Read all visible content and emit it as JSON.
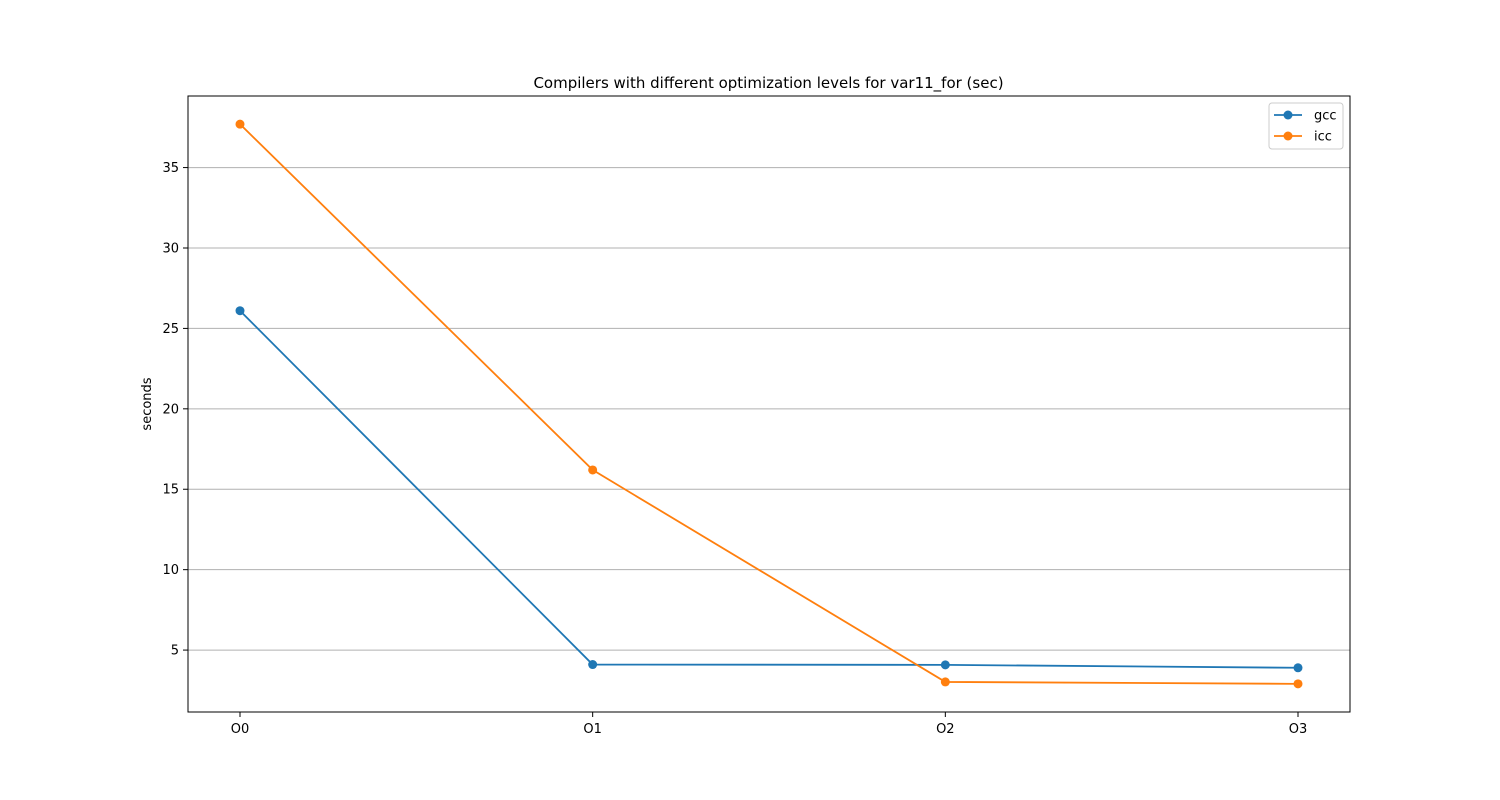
{
  "chart_data": {
    "type": "line",
    "title": "Compilers with different optimization levels for var11_for (sec)",
    "xlabel": "",
    "ylabel": "seconds",
    "categories": [
      "O0",
      "O1",
      "O2",
      "O3"
    ],
    "series": [
      {
        "name": "gcc",
        "color": "#1f77b4",
        "values": [
          26.1,
          4.1,
          4.08,
          3.9
        ]
      },
      {
        "name": "icc",
        "color": "#ff7f0e",
        "values": [
          37.7,
          16.2,
          3.02,
          2.9
        ]
      }
    ],
    "yticks": [
      5,
      10,
      15,
      20,
      25,
      30,
      35
    ],
    "ylim": [
      1.15,
      39.45
    ],
    "grid": "horizontal",
    "legend_position": "top-right"
  }
}
